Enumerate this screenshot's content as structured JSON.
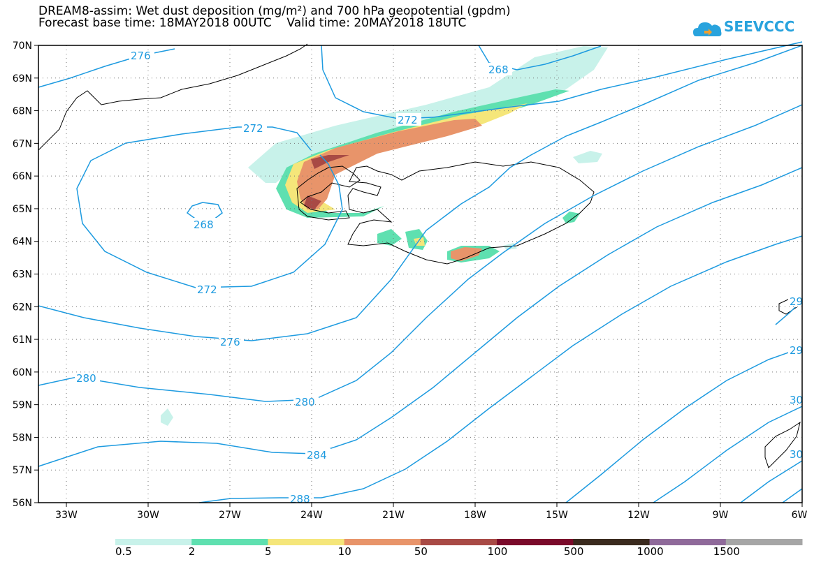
{
  "title": {
    "line1": "DREAM8-assim: Wet dust deposition (mg/m²) and 700 hPa geopotential (gpdm)",
    "line2": "Forecast base time: 18MAY2018 00UTC    Valid time: 20MAY2018 18UTC"
  },
  "logo": {
    "text": "SEEVCCC",
    "icon": "cloud-icon",
    "color": "#29a3dd"
  },
  "map": {
    "lat_labels": [
      "70N",
      "69N",
      "68N",
      "67N",
      "66N",
      "65N",
      "64N",
      "63N",
      "62N",
      "61N",
      "60N",
      "59N",
      "58N",
      "57N",
      "56N"
    ],
    "lon_labels": [
      "33W",
      "30W",
      "27W",
      "24W",
      "21W",
      "18W",
      "15W",
      "12W",
      "9W",
      "6W"
    ],
    "contour_color": "#1e9be0",
    "contour_labels": [
      "276",
      "268",
      "272",
      "272",
      "268",
      "272",
      "276",
      "280",
      "280",
      "284",
      "288",
      "29",
      "29",
      "30",
      "30"
    ]
  },
  "colorbar": {
    "colors": [
      "#c8f2ea",
      "#5fe0b0",
      "#f5e67a",
      "#e8946a",
      "#a84a45",
      "#7a0a2a",
      "#3a2a1e",
      "#8f6a9a",
      "#a6a6a6"
    ],
    "labels": [
      "0.5",
      "2",
      "5",
      "10",
      "50",
      "100",
      "500",
      "1000",
      "1500"
    ]
  }
}
